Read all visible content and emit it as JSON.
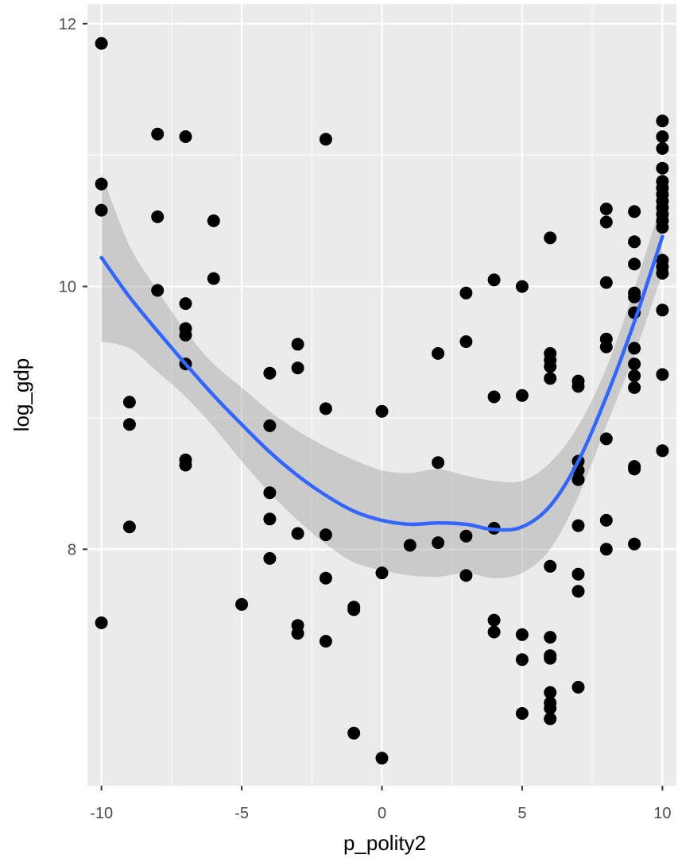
{
  "chart_data": {
    "type": "scatter",
    "title": "",
    "xlabel": "p_polity2",
    "ylabel": "log_gdp",
    "xlim": [
      -10.5,
      10.5
    ],
    "ylim": [
      6.2,
      12.15
    ],
    "x_ticks": [
      -10,
      -5,
      0,
      5,
      10
    ],
    "x_tick_labels": [
      "-10",
      "-5",
      "0",
      "5",
      "10"
    ],
    "y_ticks": [
      8,
      10,
      12
    ],
    "y_tick_labels": [
      "8",
      "10",
      "12"
    ],
    "grid": true,
    "legend": "none",
    "colors": {
      "panel": "#ebebeb",
      "grid": "#ffffff",
      "points": "#000000",
      "smooth_line": "#3366ff",
      "ribbon": "#999999"
    },
    "points": [
      {
        "x": -10,
        "y": 11.85
      },
      {
        "x": -10,
        "y": 10.78
      },
      {
        "x": -10,
        "y": 10.58
      },
      {
        "x": -10,
        "y": 7.44
      },
      {
        "x": -9,
        "y": 9.12
      },
      {
        "x": -9,
        "y": 8.95
      },
      {
        "x": -9,
        "y": 8.17
      },
      {
        "x": -8,
        "y": 11.16
      },
      {
        "x": -8,
        "y": 10.53
      },
      {
        "x": -8,
        "y": 9.97
      },
      {
        "x": -7,
        "y": 11.14
      },
      {
        "x": -7,
        "y": 9.87
      },
      {
        "x": -7,
        "y": 9.68
      },
      {
        "x": -7,
        "y": 9.63
      },
      {
        "x": -7,
        "y": 9.41
      },
      {
        "x": -7,
        "y": 8.68
      },
      {
        "x": -7,
        "y": 8.64
      },
      {
        "x": -6,
        "y": 10.5
      },
      {
        "x": -6,
        "y": 10.06
      },
      {
        "x": -5,
        "y": 7.58
      },
      {
        "x": -4,
        "y": 9.34
      },
      {
        "x": -4,
        "y": 8.94
      },
      {
        "x": -4,
        "y": 8.43
      },
      {
        "x": -4,
        "y": 8.23
      },
      {
        "x": -4,
        "y": 7.93
      },
      {
        "x": -3,
        "y": 9.56
      },
      {
        "x": -3,
        "y": 9.38
      },
      {
        "x": -3,
        "y": 8.12
      },
      {
        "x": -3,
        "y": 7.42
      },
      {
        "x": -3,
        "y": 7.36
      },
      {
        "x": -2,
        "y": 11.12
      },
      {
        "x": -2,
        "y": 9.07
      },
      {
        "x": -2,
        "y": 8.11
      },
      {
        "x": -2,
        "y": 7.78
      },
      {
        "x": -2,
        "y": 7.3
      },
      {
        "x": -1,
        "y": 7.56
      },
      {
        "x": -1,
        "y": 7.54
      },
      {
        "x": -1,
        "y": 6.6
      },
      {
        "x": 0,
        "y": 9.05
      },
      {
        "x": 0,
        "y": 7.82
      },
      {
        "x": 0,
        "y": 6.41
      },
      {
        "x": 1,
        "y": 8.03
      },
      {
        "x": 2,
        "y": 9.49
      },
      {
        "x": 2,
        "y": 8.66
      },
      {
        "x": 2,
        "y": 8.05
      },
      {
        "x": 3,
        "y": 9.95
      },
      {
        "x": 3,
        "y": 9.58
      },
      {
        "x": 3,
        "y": 8.1
      },
      {
        "x": 3,
        "y": 7.8
      },
      {
        "x": 4,
        "y": 10.05
      },
      {
        "x": 4,
        "y": 9.16
      },
      {
        "x": 4,
        "y": 8.16
      },
      {
        "x": 4,
        "y": 7.46
      },
      {
        "x": 4,
        "y": 7.37
      },
      {
        "x": 5,
        "y": 10.0
      },
      {
        "x": 5,
        "y": 9.17
      },
      {
        "x": 5,
        "y": 7.35
      },
      {
        "x": 5,
        "y": 7.16
      },
      {
        "x": 5,
        "y": 6.75
      },
      {
        "x": 6,
        "y": 10.37
      },
      {
        "x": 6,
        "y": 9.49
      },
      {
        "x": 6,
        "y": 9.44
      },
      {
        "x": 6,
        "y": 9.39
      },
      {
        "x": 6,
        "y": 9.3
      },
      {
        "x": 6,
        "y": 7.87
      },
      {
        "x": 6,
        "y": 7.33
      },
      {
        "x": 6,
        "y": 7.19
      },
      {
        "x": 6,
        "y": 7.17
      },
      {
        "x": 6,
        "y": 6.91
      },
      {
        "x": 6,
        "y": 6.83
      },
      {
        "x": 6,
        "y": 6.79
      },
      {
        "x": 6,
        "y": 6.71
      },
      {
        "x": 7,
        "y": 9.28
      },
      {
        "x": 7,
        "y": 9.24
      },
      {
        "x": 7,
        "y": 8.67
      },
      {
        "x": 7,
        "y": 8.6
      },
      {
        "x": 7,
        "y": 8.53
      },
      {
        "x": 7,
        "y": 8.18
      },
      {
        "x": 7,
        "y": 7.81
      },
      {
        "x": 7,
        "y": 7.68
      },
      {
        "x": 7,
        "y": 6.95
      },
      {
        "x": 8,
        "y": 10.59
      },
      {
        "x": 8,
        "y": 10.49
      },
      {
        "x": 8,
        "y": 10.03
      },
      {
        "x": 8,
        "y": 9.6
      },
      {
        "x": 8,
        "y": 9.54
      },
      {
        "x": 8,
        "y": 8.84
      },
      {
        "x": 8,
        "y": 8.22
      },
      {
        "x": 8,
        "y": 8.0
      },
      {
        "x": 9,
        "y": 10.57
      },
      {
        "x": 9,
        "y": 10.34
      },
      {
        "x": 9,
        "y": 10.17
      },
      {
        "x": 9,
        "y": 9.95
      },
      {
        "x": 9,
        "y": 9.92
      },
      {
        "x": 9,
        "y": 9.8
      },
      {
        "x": 9,
        "y": 9.53
      },
      {
        "x": 9,
        "y": 9.41
      },
      {
        "x": 9,
        "y": 9.32
      },
      {
        "x": 9,
        "y": 9.23
      },
      {
        "x": 9,
        "y": 8.63
      },
      {
        "x": 9,
        "y": 8.61
      },
      {
        "x": 9,
        "y": 8.04
      },
      {
        "x": 10,
        "y": 11.26
      },
      {
        "x": 10,
        "y": 11.14
      },
      {
        "x": 10,
        "y": 11.05
      },
      {
        "x": 10,
        "y": 10.9
      },
      {
        "x": 10,
        "y": 10.8
      },
      {
        "x": 10,
        "y": 10.75
      },
      {
        "x": 10,
        "y": 10.7
      },
      {
        "x": 10,
        "y": 10.65
      },
      {
        "x": 10,
        "y": 10.6
      },
      {
        "x": 10,
        "y": 10.55
      },
      {
        "x": 10,
        "y": 10.5
      },
      {
        "x": 10,
        "y": 10.45
      },
      {
        "x": 10,
        "y": 10.2
      },
      {
        "x": 10,
        "y": 10.15
      },
      {
        "x": 10,
        "y": 10.1
      },
      {
        "x": 10,
        "y": 9.82
      },
      {
        "x": 10,
        "y": 9.33
      },
      {
        "x": 10,
        "y": 8.75
      }
    ],
    "smooth": {
      "x": [
        -10,
        -9,
        -8,
        -7,
        -6,
        -5,
        -4,
        -3,
        -2,
        -1,
        0,
        1,
        2,
        3,
        4,
        5,
        6,
        7,
        8,
        9,
        10
      ],
      "y": [
        10.22,
        9.92,
        9.66,
        9.41,
        9.17,
        8.95,
        8.74,
        8.56,
        8.41,
        8.29,
        8.22,
        8.19,
        8.2,
        8.19,
        8.15,
        8.17,
        8.33,
        8.67,
        9.16,
        9.73,
        10.38
      ],
      "lower": [
        9.58,
        9.53,
        9.35,
        9.16,
        8.93,
        8.67,
        8.43,
        8.22,
        8.04,
        7.9,
        7.84,
        7.8,
        7.79,
        7.82,
        7.78,
        7.82,
        8.0,
        8.4,
        8.94,
        9.48,
        10.1
      ],
      "upper": [
        10.86,
        10.31,
        9.97,
        9.66,
        9.41,
        9.23,
        9.05,
        8.9,
        8.78,
        8.68,
        8.6,
        8.58,
        8.61,
        8.56,
        8.52,
        8.52,
        8.66,
        8.94,
        9.38,
        9.98,
        10.66
      ]
    }
  }
}
